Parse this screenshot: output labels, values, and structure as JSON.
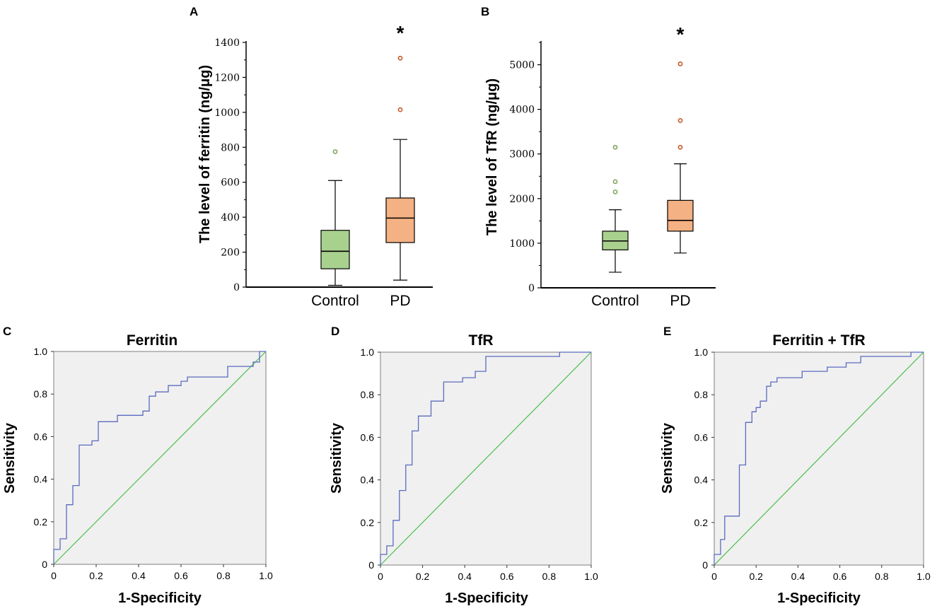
{
  "colors": {
    "control_fill": "#a9d18e",
    "pd_fill": "#f4b183",
    "control_outlier": "#7fa45c",
    "pd_outlier": "#c55a2a",
    "roc_bg": "#f0f0f0",
    "roc_curve": "#5b6bbf",
    "roc_diag": "#4cbf4c",
    "axis": "#000000"
  },
  "chart_data": [
    {
      "panel": "A",
      "type": "box",
      "ylabel": "The level of ferritin  (ng/μg)",
      "ylim": [
        0,
        1400
      ],
      "yticks": [
        0,
        200,
        400,
        600,
        800,
        1000,
        1200,
        1400
      ],
      "ytick_labels": [
        "0",
        "200",
        "400",
        "600",
        "800",
        "1000",
        "1200",
        "1400"
      ],
      "categories": [
        "Control",
        "PD"
      ],
      "boxes": [
        {
          "name": "Control",
          "whisker_low": 10,
          "q1": 105,
          "median": 205,
          "q3": 325,
          "whisker_high": 610,
          "outliers": [
            775
          ]
        },
        {
          "name": "PD",
          "whisker_low": 40,
          "q1": 255,
          "median": 395,
          "q3": 510,
          "whisker_high": 845,
          "outliers": [
            1015,
            1310
          ]
        }
      ],
      "annotation": "*"
    },
    {
      "panel": "B",
      "type": "box",
      "ylabel": "The level of TfR  (ng/μg)",
      "ylim": [
        0,
        5500
      ],
      "yticks": [
        0,
        1000,
        2000,
        3000,
        4000,
        5000
      ],
      "ytick_labels": [
        "0",
        "1000",
        "2000",
        "3000",
        "4000",
        "5000"
      ],
      "categories": [
        "Control",
        "PD"
      ],
      "boxes": [
        {
          "name": "Control",
          "whisker_low": 350,
          "q1": 850,
          "median": 1050,
          "q3": 1270,
          "whisker_high": 1750,
          "outliers": [
            2150,
            2380,
            3150
          ]
        },
        {
          "name": "PD",
          "whisker_low": 780,
          "q1": 1270,
          "median": 1510,
          "q3": 1960,
          "whisker_high": 2780,
          "outliers": [
            3150,
            3750,
            5020
          ]
        }
      ],
      "annotation": "*"
    },
    {
      "panel": "C",
      "type": "line",
      "title": "Ferritin",
      "xlabel": "1-Specificity",
      "ylabel": "Sensitivity",
      "xlim": [
        0,
        1
      ],
      "ylim": [
        0,
        1
      ],
      "ticks": [
        "0",
        "0.2",
        "0.4",
        "0.6",
        "0.8",
        "1.0"
      ],
      "x": [
        0,
        0,
        0.03,
        0.03,
        0.06,
        0.06,
        0.09,
        0.09,
        0.12,
        0.12,
        0.18,
        0.18,
        0.21,
        0.21,
        0.3,
        0.3,
        0.42,
        0.42,
        0.45,
        0.45,
        0.48,
        0.48,
        0.54,
        0.54,
        0.6,
        0.6,
        0.63,
        0.63,
        0.66,
        0.66,
        0.82,
        0.82,
        0.94,
        0.94,
        0.97,
        0.97,
        1.0
      ],
      "y": [
        0,
        0.07,
        0.07,
        0.12,
        0.12,
        0.28,
        0.28,
        0.37,
        0.37,
        0.56,
        0.56,
        0.58,
        0.58,
        0.67,
        0.67,
        0.7,
        0.7,
        0.72,
        0.72,
        0.79,
        0.79,
        0.81,
        0.81,
        0.84,
        0.84,
        0.86,
        0.86,
        0.88,
        0.88,
        0.88,
        0.88,
        0.93,
        0.93,
        0.95,
        0.95,
        1.0,
        1.0
      ],
      "reference_line": [
        [
          0,
          0
        ],
        [
          1,
          1
        ]
      ]
    },
    {
      "panel": "D",
      "type": "line",
      "title": "TfR",
      "xlabel": "1-Specificity",
      "ylabel": "Sensitivity",
      "xlim": [
        0,
        1
      ],
      "ylim": [
        0,
        1
      ],
      "ticks": [
        "0",
        "0.2",
        "0.4",
        "0.6",
        "0.8",
        "1.0"
      ],
      "x": [
        0,
        0,
        0.03,
        0.03,
        0.06,
        0.06,
        0.09,
        0.09,
        0.12,
        0.12,
        0.15,
        0.15,
        0.18,
        0.18,
        0.24,
        0.24,
        0.3,
        0.3,
        0.39,
        0.39,
        0.45,
        0.45,
        0.5,
        0.5,
        0.85,
        0.85,
        1.0
      ],
      "y": [
        0,
        0.05,
        0.05,
        0.09,
        0.09,
        0.21,
        0.21,
        0.35,
        0.35,
        0.47,
        0.47,
        0.63,
        0.63,
        0.7,
        0.7,
        0.77,
        0.77,
        0.86,
        0.86,
        0.88,
        0.88,
        0.91,
        0.91,
        0.98,
        0.98,
        1.0,
        1.0
      ],
      "reference_line": [
        [
          0,
          0
        ],
        [
          1,
          1
        ]
      ]
    },
    {
      "panel": "E",
      "type": "line",
      "title": "Ferritin + TfR",
      "xlabel": "1-Specificity",
      "ylabel": "Sensitivity",
      "xlim": [
        0,
        1
      ],
      "ylim": [
        0,
        1
      ],
      "ticks": [
        "0",
        "0.2",
        "0.4",
        "0.6",
        "0.8",
        "1.0"
      ],
      "x": [
        0,
        0,
        0.03,
        0.03,
        0.05,
        0.05,
        0.12,
        0.12,
        0.15,
        0.15,
        0.18,
        0.18,
        0.2,
        0.2,
        0.22,
        0.22,
        0.25,
        0.25,
        0.27,
        0.27,
        0.3,
        0.3,
        0.42,
        0.42,
        0.54,
        0.54,
        0.63,
        0.63,
        0.7,
        0.7,
        0.94,
        0.94,
        1.0
      ],
      "y": [
        0,
        0.05,
        0.05,
        0.12,
        0.12,
        0.23,
        0.23,
        0.47,
        0.47,
        0.67,
        0.67,
        0.72,
        0.72,
        0.74,
        0.74,
        0.77,
        0.77,
        0.84,
        0.84,
        0.86,
        0.86,
        0.88,
        0.88,
        0.91,
        0.91,
        0.93,
        0.93,
        0.95,
        0.95,
        0.98,
        0.98,
        1.0,
        1.0
      ],
      "reference_line": [
        [
          0,
          0
        ],
        [
          1,
          1
        ]
      ]
    }
  ]
}
